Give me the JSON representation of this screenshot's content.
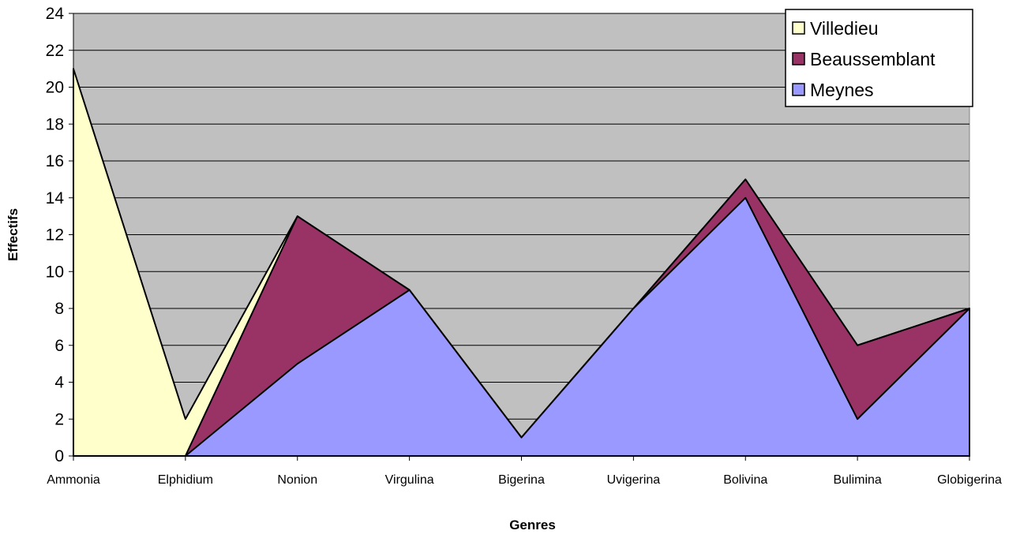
{
  "chart_data": {
    "type": "area",
    "stacked": false,
    "categories": [
      "Ammonia",
      "Elphidium",
      "Nonion",
      "Virgulina",
      "Bigerina",
      "Uvigerina",
      "Bolivina",
      "Bulimina",
      "Globigerina"
    ],
    "series": [
      {
        "name": "Villedieu",
        "values": [
          21,
          2,
          13,
          9,
          1,
          8,
          15,
          6,
          8
        ],
        "color": "#ffffcc"
      },
      {
        "name": "Beaussemblant",
        "values": [
          0,
          0,
          13,
          9,
          1,
          8,
          15,
          6,
          8
        ],
        "color": "#993366"
      },
      {
        "name": "Meynes",
        "values": [
          0,
          0,
          5,
          9,
          1,
          8,
          14,
          2,
          8
        ],
        "color": "#9999ff"
      }
    ],
    "xlabel": "Genres",
    "ylabel": "Effectifs",
    "ylim": [
      0,
      24
    ],
    "yticks": [
      "0",
      "2",
      "4",
      "6",
      "8",
      "10",
      "12",
      "14",
      "16",
      "18",
      "20",
      "22",
      "24"
    ],
    "grid": true,
    "plot_background": "#c0c0c0",
    "legend_position": "top-right"
  }
}
